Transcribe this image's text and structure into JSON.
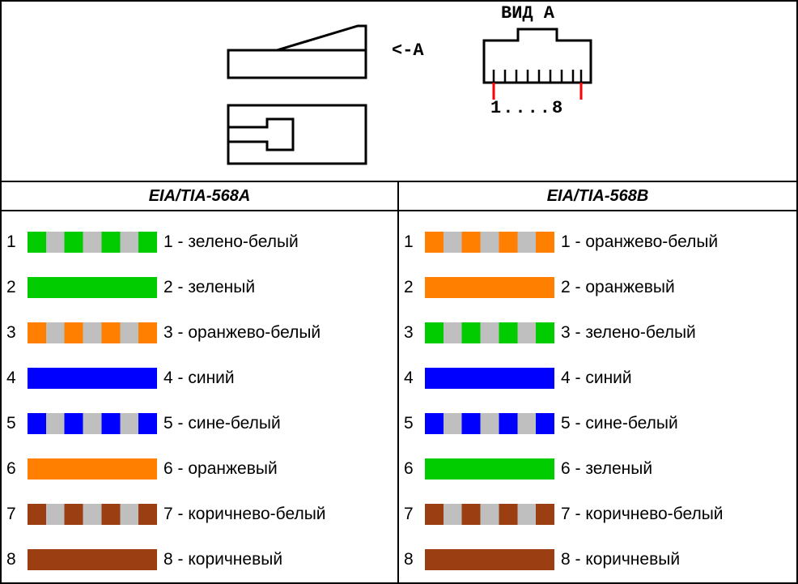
{
  "top": {
    "view_label": "ВИД А",
    "annotation_a": "<-A",
    "pin_range": "1....8"
  },
  "colors": {
    "green": "#00cc00",
    "orange": "#ff7f00",
    "blue": "#0000ff",
    "brown": "#9b3f12",
    "stripe_gray": "#bfbfbf",
    "red_line": "#ff0000",
    "black": "#000000",
    "white": "#ffffff"
  },
  "standards": {
    "left": {
      "title": "EIA/TIA-568A",
      "wires": [
        {
          "n": 1,
          "label": "1 - зелено-белый",
          "color": "#00cc00",
          "striped": true
        },
        {
          "n": 2,
          "label": "2 - зеленый",
          "color": "#00cc00",
          "striped": false
        },
        {
          "n": 3,
          "label": "3 - оранжево-белый",
          "color": "#ff7f00",
          "striped": true
        },
        {
          "n": 4,
          "label": "4 - синий",
          "color": "#0000ff",
          "striped": false
        },
        {
          "n": 5,
          "label": "5 - сине-белый",
          "color": "#0000ff",
          "striped": true
        },
        {
          "n": 6,
          "label": "6 - оранжевый",
          "color": "#ff7f00",
          "striped": false
        },
        {
          "n": 7,
          "label": "7 - коричнево-белый",
          "color": "#9b3f12",
          "striped": true
        },
        {
          "n": 8,
          "label": "8 - коричневый",
          "color": "#9b3f12",
          "striped": false
        }
      ]
    },
    "right": {
      "title": "EIA/TIA-568B",
      "wires": [
        {
          "n": 1,
          "label": "1 - оранжево-белый",
          "color": "#ff7f00",
          "striped": true
        },
        {
          "n": 2,
          "label": "2 - оранжевый",
          "color": "#ff7f00",
          "striped": false
        },
        {
          "n": 3,
          "label": "3 - зелено-белый",
          "color": "#00cc00",
          "striped": true
        },
        {
          "n": 4,
          "label": "4 - синий",
          "color": "#0000ff",
          "striped": false
        },
        {
          "n": 5,
          "label": "5 - сине-белый",
          "color": "#0000ff",
          "striped": true
        },
        {
          "n": 6,
          "label": "6 - зеленый",
          "color": "#00cc00",
          "striped": false
        },
        {
          "n": 7,
          "label": "7 - коричнево-белый",
          "color": "#9b3f12",
          "striped": true
        },
        {
          "n": 8,
          "label": "8 - коричневый",
          "color": "#9b3f12",
          "striped": false
        }
      ]
    }
  },
  "swatch": {
    "width": 160,
    "height": 26,
    "stripe_segments": 7
  }
}
